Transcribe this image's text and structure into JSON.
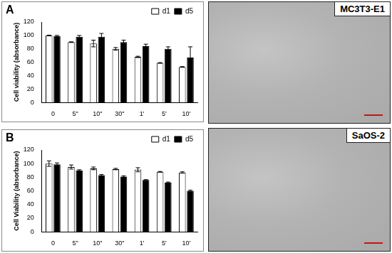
{
  "chart_data": [
    {
      "type": "bar",
      "panel_label": "A",
      "y_label": "Cell viability (absorbance)",
      "categories": [
        "0",
        "5\"",
        "10\"",
        "30\"",
        "1'",
        "5'",
        "10'"
      ],
      "series": [
        {
          "name": "d1",
          "color": "#ffffff",
          "values": [
            100,
            90,
            88,
            80,
            68,
            59,
            53
          ],
          "errors": [
            0.5,
            0.5,
            5,
            2,
            1,
            0.5,
            0.5
          ]
        },
        {
          "name": "d5",
          "color": "#000000",
          "values": [
            99,
            98,
            98,
            90,
            84,
            80,
            67
          ],
          "errors": [
            1,
            2,
            5,
            3,
            3,
            3,
            16
          ]
        }
      ],
      "ylim": [
        0,
        120
      ],
      "yticks": [
        0,
        20,
        40,
        60,
        80,
        100,
        120
      ],
      "grid": false,
      "legend": "top-right",
      "image_label": "MC3T3-E1"
    },
    {
      "type": "bar",
      "panel_label": "B",
      "y_label": "Cell Viability (absorbance)",
      "categories": [
        "0",
        "5\"",
        "10\"",
        "30\"",
        "1'",
        "5'",
        "10'"
      ],
      "series": [
        {
          "name": "d1",
          "color": "#ffffff",
          "values": [
            100,
            95,
            93,
            92,
            91,
            88,
            87
          ],
          "errors": [
            4,
            3,
            2,
            1,
            3,
            0.5,
            1
          ]
        },
        {
          "name": "d5",
          "color": "#000000",
          "values": [
            99,
            90,
            83,
            81,
            76,
            72,
            60
          ],
          "errors": [
            2,
            1,
            1,
            1,
            0.5,
            1,
            1
          ]
        }
      ],
      "ylim": [
        0,
        120
      ],
      "yticks": [
        0,
        20,
        40,
        60,
        80,
        100,
        120
      ],
      "grid": false,
      "legend": "top-right",
      "image_label": "SaOS-2"
    }
  ]
}
